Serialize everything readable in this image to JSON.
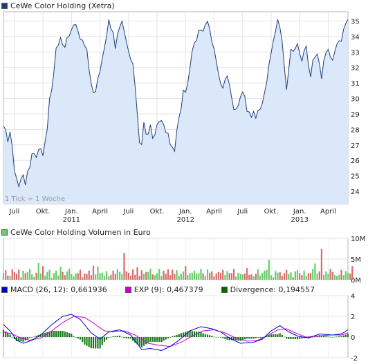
{
  "price_legend": {
    "label": "CeWe Color Holding (Xetra)",
    "color": "#1f3f7a"
  },
  "volume_legend": {
    "label": "CeWe Color Holding Volumen in Euro",
    "color": "#6dc96d"
  },
  "indicator_legend": {
    "macd": {
      "label": "MACD (26, 12): 0,661936",
      "color": "#0000cc"
    },
    "exp": {
      "label": "EXP (9): 0,467379",
      "color": "#cc00cc"
    },
    "div": {
      "label": "Divergence: 0,194557",
      "color": "#006600"
    }
  },
  "annotation": "1 Tick = 1 Woche",
  "colors": {
    "price_line": "#1f3f7a",
    "price_fill": "#dbe8f9",
    "vol_up": "#66cc66",
    "vol_down": "#d96b6b",
    "macd": "#0000cc",
    "exp": "#cc00cc",
    "div": "#1a7a1a"
  },
  "chart_data": [
    {
      "type": "area",
      "title": "CeWe Color Holding (Xetra)",
      "y_ticks": [
        "24",
        "25",
        "26",
        "27",
        "28",
        "29",
        "30",
        "31",
        "32",
        "33",
        "34",
        "35"
      ],
      "ylim": [
        23.2,
        35.6
      ],
      "x_tick_labels": [
        {
          "label": "Juli",
          "t": 5
        },
        {
          "label": "Okt.",
          "t": 18
        },
        {
          "label": "Jan.",
          "sub": "2011",
          "t": 31
        },
        {
          "label": "April",
          "t": 44
        },
        {
          "label": "Juli",
          "t": 57
        },
        {
          "label": "Okt.",
          "t": 70
        },
        {
          "label": "Jan.",
          "sub": "2012",
          "t": 83
        },
        {
          "label": "April",
          "t": 96
        },
        {
          "label": "Juli",
          "t": 109
        },
        {
          "label": "Okt.",
          "t": 122
        },
        {
          "label": "Jan.",
          "sub": "2013",
          "t": 135
        },
        {
          "label": "April",
          "t": 148
        }
      ],
      "n_weeks": 158,
      "anchors": [
        [
          0,
          28.2
        ],
        [
          2,
          27.4
        ],
        [
          3,
          27.9
        ],
        [
          5,
          25.5
        ],
        [
          7,
          24.3
        ],
        [
          9,
          25.2
        ],
        [
          10,
          24.6
        ],
        [
          12,
          25.6
        ],
        [
          13,
          26.6
        ],
        [
          15,
          26.3
        ],
        [
          16,
          26.9
        ],
        [
          18,
          26.4
        ],
        [
          20,
          28.3
        ],
        [
          21,
          29.8
        ],
        [
          23,
          31.6
        ],
        [
          24,
          33.3
        ],
        [
          26,
          33.9
        ],
        [
          28,
          33.2
        ],
        [
          29,
          33.9
        ],
        [
          31,
          34.6
        ],
        [
          33,
          35.0
        ],
        [
          34,
          34.1
        ],
        [
          36,
          33.7
        ],
        [
          38,
          33.0
        ],
        [
          40,
          31.0
        ],
        [
          41,
          30.4
        ],
        [
          42,
          30.5
        ],
        [
          44,
          31.8
        ],
        [
          46,
          33.4
        ],
        [
          48,
          35.0
        ],
        [
          50,
          34.4
        ],
        [
          51,
          33.1
        ],
        [
          52,
          34.0
        ],
        [
          54,
          34.8
        ],
        [
          55,
          34.2
        ],
        [
          57,
          33.0
        ],
        [
          59,
          32.0
        ],
        [
          60,
          30.9
        ],
        [
          62,
          27.3
        ],
        [
          63,
          27.1
        ],
        [
          64,
          28.4
        ],
        [
          65,
          27.6
        ],
        [
          67,
          28.1
        ],
        [
          68,
          27.2
        ],
        [
          70,
          28.3
        ],
        [
          72,
          28.8
        ],
        [
          73,
          28.1
        ],
        [
          75,
          27.6
        ],
        [
          76,
          27.0
        ],
        [
          78,
          26.8
        ],
        [
          79,
          27.8
        ],
        [
          80,
          28.6
        ],
        [
          81,
          29.5
        ],
        [
          82,
          30.3
        ],
        [
          84,
          30.9
        ],
        [
          85,
          31.9
        ],
        [
          86,
          33.0
        ],
        [
          88,
          33.9
        ],
        [
          90,
          34.6
        ],
        [
          91,
          34.1
        ],
        [
          92,
          35.0
        ],
        [
          94,
          34.5
        ],
        [
          95,
          33.5
        ],
        [
          97,
          32.6
        ],
        [
          98,
          31.6
        ],
        [
          100,
          30.8
        ],
        [
          102,
          31.7
        ],
        [
          103,
          31.0
        ],
        [
          105,
          29.4
        ],
        [
          106,
          29.2
        ],
        [
          108,
          30.3
        ],
        [
          110,
          30.1
        ],
        [
          111,
          29.4
        ],
        [
          113,
          29.0
        ],
        [
          114,
          29.2
        ],
        [
          115,
          28.8
        ],
        [
          117,
          29.2
        ],
        [
          119,
          30.3
        ],
        [
          121,
          32.0
        ],
        [
          123,
          33.7
        ],
        [
          125,
          35.2
        ],
        [
          126,
          34.8
        ],
        [
          128,
          32.3
        ],
        [
          129,
          30.8
        ],
        [
          131,
          33.3
        ],
        [
          132,
          32.8
        ],
        [
          134,
          33.6
        ],
        [
          136,
          32.4
        ],
        [
          138,
          33.4
        ],
        [
          139,
          32.2
        ],
        [
          140,
          31.6
        ],
        [
          141,
          32.3
        ],
        [
          143,
          32.9
        ],
        [
          145,
          31.2
        ],
        [
          146,
          32.5
        ],
        [
          148,
          33.0
        ],
        [
          150,
          32.5
        ],
        [
          152,
          33.4
        ],
        [
          154,
          33.7
        ],
        [
          156,
          34.8
        ],
        [
          157,
          35.1
        ]
      ]
    },
    {
      "type": "bar",
      "title": "CeWe Color Holding Volumen in Euro",
      "y_ticks": [
        "0M",
        "5M",
        "10M"
      ],
      "ylim": [
        0,
        10
      ],
      "values": [
        1.6,
        2.3,
        1.0,
        0.9,
        2.5,
        1.8,
        1.4,
        2.4,
        0.6,
        2.2,
        1.6,
        1.9,
        2.6,
        1.3,
        0.7,
        1.7,
        4.0,
        1.5,
        3.3,
        1.0,
        1.9,
        2.4,
        0.5,
        1.6,
        2.2,
        1.0,
        3.1,
        1.9,
        1.1,
        2.0,
        2.7,
        1.4,
        0.8,
        1.5,
        1.6,
        2.4,
        0.6,
        1.5,
        1.4,
        2.2,
        1.1,
        3.4,
        1.3,
        3.2,
        1.6,
        1.7,
        0.9,
        2.1,
        0.8,
        1.2,
        2.2,
        1.4,
        2.6,
        1.9,
        1.4,
        6.5,
        2.0,
        1.7,
        0.9,
        2.5,
        1.2,
        3.0,
        0.9,
        2.3,
        1.4,
        1.9,
        1.9,
        2.7,
        1.3,
        1.1,
        1.6,
        2.6,
        0.9,
        2.2,
        1.4,
        2.5,
        1.1,
        2.4,
        1.4,
        2.3,
        0.9,
        1.4,
        2.0,
        3.3,
        1.2,
        1.6,
        1.7,
        2.2,
        1.5,
        1.6,
        2.6,
        1.5,
        0.9,
        2.5,
        1.7,
        2.0,
        0.8,
        1.5,
        1.9,
        1.7,
        2.4,
        1.2,
        2.1,
        1.6,
        1.6,
        2.6,
        0.8,
        1.7,
        1.4,
        1.3,
        1.5,
        2.8,
        1.2,
        1.3,
        0.8,
        1.4,
        2.5,
        1.0,
        1.6,
        2.2,
        2.4,
        4.8,
        1.1,
        0.6,
        2.1,
        1.7,
        1.8,
        0.9,
        1.6,
        2.4,
        1.4,
        1.8,
        0.6,
        2.0,
        2.3,
        1.6,
        1.1,
        2.2,
        0.9,
        1.6,
        1.6,
        2.6,
        3.9,
        1.5,
        2.0,
        7.5,
        1.2,
        2.0,
        1.4,
        2.6,
        1.9,
        1.2,
        0.9,
        1.2,
        2.4,
        1.1,
        2.1,
        1.7,
        1.5,
        3.3
      ]
    },
    {
      "type": "line",
      "title": "MACD (26, 12)",
      "y_ticks": [
        "-2",
        "0",
        "2",
        "4"
      ],
      "ylim": [
        -2,
        4
      ],
      "macd_anchors": [
        [
          0,
          1.2
        ],
        [
          3,
          0.6
        ],
        [
          6,
          -0.3
        ],
        [
          9,
          -0.6
        ],
        [
          13,
          -0.3
        ],
        [
          17,
          0.2
        ],
        [
          22,
          1.2
        ],
        [
          27,
          2.0
        ],
        [
          31,
          2.2
        ],
        [
          35,
          1.7
        ],
        [
          40,
          0.4
        ],
        [
          44,
          -0.2
        ],
        [
          48,
          0.5
        ],
        [
          53,
          0.7
        ],
        [
          58,
          0.2
        ],
        [
          63,
          -1.2
        ],
        [
          67,
          -1.1
        ],
        [
          72,
          -1.3
        ],
        [
          76,
          -0.9
        ],
        [
          80,
          -0.3
        ],
        [
          85,
          0.6
        ],
        [
          90,
          1.0
        ],
        [
          95,
          0.8
        ],
        [
          99,
          0.5
        ],
        [
          103,
          -0.1
        ],
        [
          108,
          -0.6
        ],
        [
          114,
          -0.5
        ],
        [
          118,
          -0.2
        ],
        [
          122,
          0.6
        ],
        [
          126,
          1.1
        ],
        [
          130,
          0.5
        ],
        [
          134,
          0.1
        ],
        [
          139,
          -0.1
        ],
        [
          144,
          0.3
        ],
        [
          150,
          0.2
        ],
        [
          154,
          0.3
        ],
        [
          157,
          0.7
        ]
      ],
      "exp_anchors": [
        [
          0,
          0.5
        ],
        [
          4,
          0.3
        ],
        [
          8,
          -0.1
        ],
        [
          12,
          -0.3
        ],
        [
          17,
          -0.1
        ],
        [
          22,
          0.6
        ],
        [
          27,
          1.4
        ],
        [
          32,
          2.0
        ],
        [
          37,
          1.9
        ],
        [
          42,
          1.2
        ],
        [
          46,
          0.6
        ],
        [
          50,
          0.5
        ],
        [
          55,
          0.6
        ],
        [
          60,
          0.2
        ],
        [
          66,
          -0.6
        ],
        [
          71,
          -0.8
        ],
        [
          76,
          -0.9
        ],
        [
          81,
          -0.5
        ],
        [
          86,
          0.1
        ],
        [
          91,
          0.6
        ],
        [
          96,
          0.7
        ],
        [
          101,
          0.4
        ],
        [
          106,
          -0.1
        ],
        [
          111,
          -0.4
        ],
        [
          116,
          -0.3
        ],
        [
          120,
          0.1
        ],
        [
          125,
          0.7
        ],
        [
          129,
          0.8
        ],
        [
          133,
          0.4
        ],
        [
          138,
          0.0
        ],
        [
          143,
          0.1
        ],
        [
          149,
          0.2
        ],
        [
          154,
          0.2
        ],
        [
          157,
          0.4
        ]
      ],
      "series": [
        {
          "name": "MACD (26, 12)",
          "last": 0.661936
        },
        {
          "name": "EXP (9)",
          "last": 0.467379
        },
        {
          "name": "Divergence",
          "last": 0.194557
        }
      ]
    }
  ]
}
